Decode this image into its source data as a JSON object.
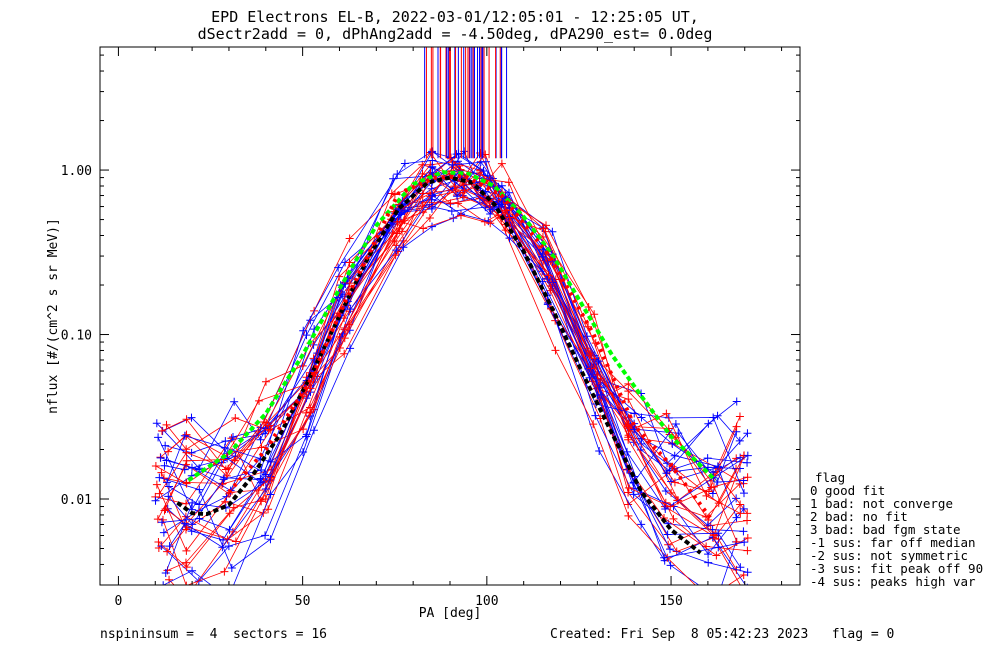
{
  "chart_data": {
    "type": "line",
    "title": "EPD Electrons EL-B, 2022-03-01/12:05:01 - 12:25:05 UT,",
    "subtitle": "dSectr2add = 0, dPhAng2add = -4.50deg, dPA290_est=   0.0deg",
    "xlabel": "PA [deg]",
    "ylabel": "nflux [#/(cm^2 s sr MeV)]",
    "xlim": [
      -5,
      185
    ],
    "ylim": [
      0.003,
      5.6
    ],
    "yscale": "log",
    "x_ticks": [
      "0",
      "50",
      "100",
      "150"
    ],
    "y_ticks": [
      "0.01",
      "0.10",
      "1.00"
    ],
    "legend": {
      "title": "flag",
      "entries": [
        " 0 good fit",
        " 1 bad: not converge",
        " 2 bad: no fit",
        " 3 bad: bad fgm state",
        "-1 sus: far off median",
        "-2 sus: not symmetric",
        "-3 sus: fit peak off 90",
        "-4 sus: peaks high var"
      ]
    },
    "colors": {
      "red": "#ff0000",
      "blue": "#0000ff",
      "green": "#00ff00",
      "black": "#000000"
    },
    "series": [
      {
        "color": "#000000",
        "style": "dashed",
        "x": [
          16,
          20,
          24,
          30,
          36,
          44,
          52,
          60,
          68,
          76,
          84,
          90,
          96,
          102,
          110,
          118,
          126,
          134,
          142,
          150,
          158
        ],
        "y": [
          0.0095,
          0.0082,
          0.0081,
          0.0092,
          0.0135,
          0.025,
          0.055,
          0.13,
          0.3,
          0.58,
          0.84,
          0.9,
          0.84,
          0.62,
          0.32,
          0.14,
          0.058,
          0.025,
          0.011,
          0.0065,
          0.0047
        ]
      },
      {
        "color": "#00ff00",
        "style": "dashed",
        "x": [
          19,
          30,
          40,
          50,
          60,
          70,
          80,
          88,
          95,
          102,
          110,
          118,
          126,
          134,
          142,
          150,
          158,
          162
        ],
        "y": [
          0.013,
          0.019,
          0.033,
          0.075,
          0.19,
          0.46,
          0.82,
          0.97,
          0.95,
          0.8,
          0.52,
          0.3,
          0.15,
          0.075,
          0.042,
          0.024,
          0.016,
          0.013
        ]
      },
      {
        "color": "#ff0000",
        "style": "dots",
        "x": [
          30,
          40,
          52,
          61,
          76,
          86,
          94,
          104,
          117,
          129,
          140,
          150,
          161
        ],
        "y": [
          0.011,
          0.02,
          0.052,
          0.15,
          0.72,
          0.9,
          0.92,
          0.7,
          0.3,
          0.1,
          0.028,
          0.016,
          0.0075
        ]
      }
    ]
  }
}
